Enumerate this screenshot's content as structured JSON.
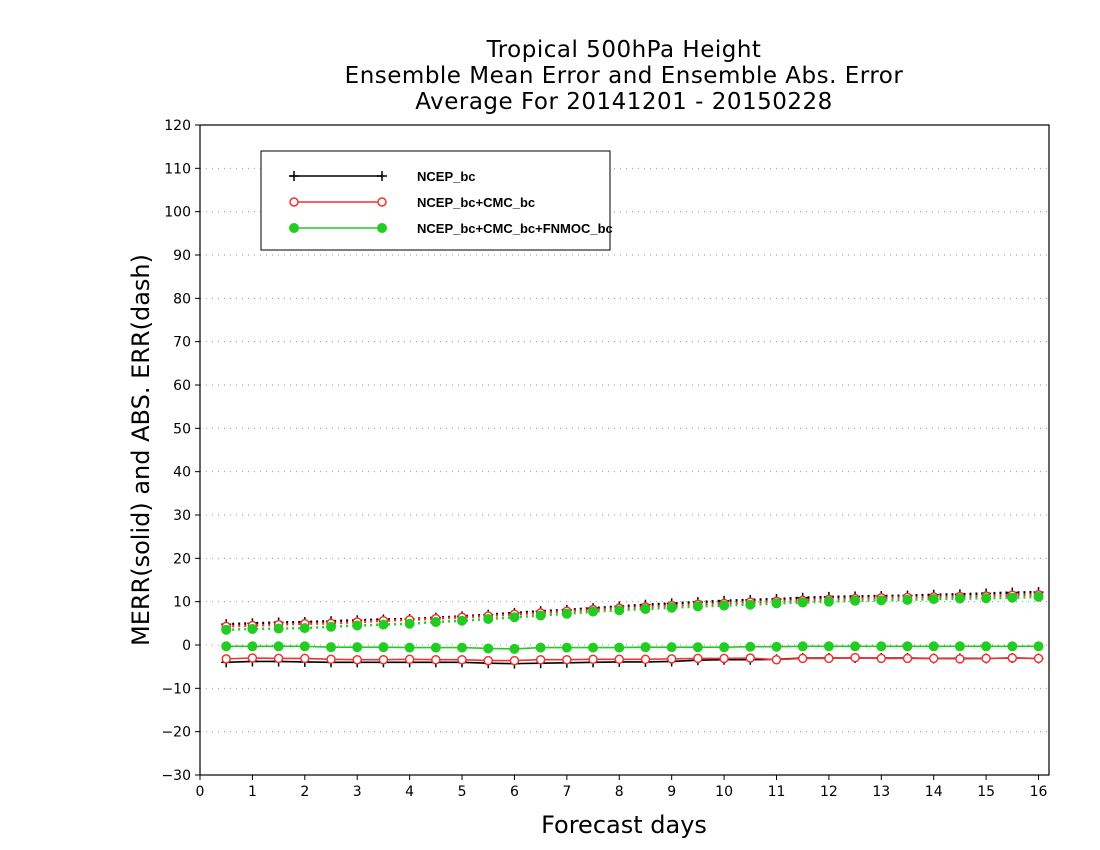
{
  "chart_data": {
    "type": "line",
    "title": [
      "Tropical 500hPa Height",
      "Ensemble Mean Error and Ensemble Abs. Error",
      "Average For 20141201 - 20150228"
    ],
    "xlabel": "Forecast days",
    "ylabel": "MERR(solid) and ABS. ERR(dash)",
    "xlim": [
      0,
      16.2
    ],
    "ylim": [
      -30,
      120
    ],
    "xticks": [
      "0",
      "1",
      "2",
      "3",
      "4",
      "5",
      "6",
      "7",
      "8",
      "9",
      "10",
      "11",
      "12",
      "13",
      "14",
      "15",
      "16"
    ],
    "yticks": [
      "120",
      "110",
      "100",
      "90",
      "80",
      "70",
      "60",
      "50",
      "40",
      "30",
      "20",
      "10",
      "0",
      "−10",
      "−20",
      "−30"
    ],
    "grid": true,
    "legend_position": "top-left",
    "x": [
      0.5,
      1,
      1.5,
      2,
      2.5,
      3,
      3.5,
      4,
      4.5,
      5,
      5.5,
      6,
      6.5,
      7,
      7.5,
      8,
      8.5,
      9,
      9.5,
      10,
      10.5,
      11,
      11.5,
      12,
      12.5,
      13,
      13.5,
      14,
      14.5,
      15,
      15.5,
      16
    ],
    "series": [
      {
        "name": "NCEP_bc",
        "color": "#000000",
        "marker": "plus",
        "merr": [
          -4,
          -3.8,
          -3.8,
          -3.9,
          -4,
          -4,
          -4,
          -4,
          -4,
          -4,
          -4.2,
          -4.3,
          -4.2,
          -4.1,
          -4,
          -3.9,
          -3.9,
          -3.8,
          -3.5,
          -3.4,
          -3.4,
          -3.3,
          -3,
          -3,
          -3,
          -3,
          -3,
          -3.1,
          -3.1,
          -3.1,
          -3,
          -3.1
        ],
        "abs_err": [
          4.8,
          5,
          5.2,
          5.3,
          5.5,
          5.7,
          5.9,
          6,
          6.3,
          6.6,
          7,
          7.4,
          7.8,
          8.1,
          8.5,
          8.9,
          9.3,
          9.6,
          9.9,
          10.2,
          10.4,
          10.6,
          10.9,
          11.1,
          11.2,
          11.3,
          11.4,
          11.6,
          11.7,
          11.9,
          12.1,
          12.2
        ]
      },
      {
        "name": "NCEP_bc+CMC_bc",
        "color": "#ee3333",
        "marker": "open-circle",
        "merr": [
          -3.2,
          -3,
          -3.1,
          -3.1,
          -3.3,
          -3.4,
          -3.4,
          -3.3,
          -3.4,
          -3.4,
          -3.6,
          -3.6,
          -3.4,
          -3.4,
          -3.3,
          -3.3,
          -3.3,
          -3.2,
          -3.1,
          -3.1,
          -3,
          -3.4,
          -3.1,
          -3.1,
          -2.9,
          -3.1,
          -3.1,
          -3.1,
          -3.2,
          -3.1,
          -3,
          -3.1
        ],
        "abs_err": [
          4.3,
          4.5,
          4.7,
          4.9,
          5,
          5.3,
          5.6,
          5.8,
          6.1,
          6.4,
          6.7,
          7.1,
          7.4,
          7.8,
          8.2,
          8.5,
          8.8,
          9.1,
          9.4,
          9.6,
          9.9,
          10.1,
          10.3,
          10.5,
          10.7,
          10.9,
          11,
          11.1,
          11.2,
          11.3,
          11.5,
          11.6
        ]
      },
      {
        "name": "NCEP_bc+CMC_bc+FNMOC_bc",
        "color": "#22cc22",
        "marker": "filled-circle",
        "merr": [
          -0.3,
          -0.3,
          -0.3,
          -0.3,
          -0.5,
          -0.5,
          -0.5,
          -0.6,
          -0.6,
          -0.6,
          -0.8,
          -0.9,
          -0.6,
          -0.6,
          -0.6,
          -0.6,
          -0.5,
          -0.5,
          -0.5,
          -0.5,
          -0.4,
          -0.4,
          -0.3,
          -0.3,
          -0.3,
          -0.3,
          -0.3,
          -0.3,
          -0.3,
          -0.3,
          -0.3,
          -0.3
        ],
        "abs_err": [
          3.5,
          3.7,
          3.8,
          3.9,
          4.2,
          4.5,
          4.7,
          4.9,
          5.3,
          5.6,
          6,
          6.4,
          6.8,
          7.2,
          7.7,
          8,
          8.3,
          8.6,
          8.9,
          9.1,
          9.3,
          9.6,
          9.8,
          10,
          10.2,
          10.3,
          10.4,
          10.6,
          10.7,
          10.8,
          10.9,
          11.1
        ]
      }
    ]
  }
}
